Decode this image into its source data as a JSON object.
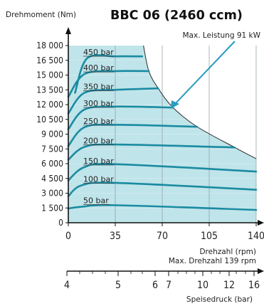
{
  "title": "BBC 06 (2460 ccm)",
  "colors": {
    "plot_background": "#bfe4ea",
    "envelope_fill": "#ffffff",
    "curve": "#1a8ba1",
    "annotation": "#2a9cc0",
    "axis": "#111111"
  },
  "chart_data": {
    "type": "line",
    "title": "BBC 06 (2460 ccm)",
    "ylabel": "Drehmoment (Nm)",
    "xlabel": "Drehzahl (rpm)",
    "xlabel_note": "Max. Drehzahl 139 rpm",
    "xlim": [
      0,
      140
    ],
    "ylim": [
      0,
      18000
    ],
    "x_ticks": [
      "0",
      "35",
      "70",
      "105",
      "140"
    ],
    "x_tick_values": [
      0,
      35,
      70,
      105,
      140
    ],
    "y_ticks": [
      "0",
      "1 500",
      "3 000",
      "4 500",
      "6 000",
      "7 500",
      "9 000",
      "10 500",
      "12 000",
      "13 500",
      "15 000",
      "16 500",
      "18 000"
    ],
    "y_tick_values": [
      0,
      1500,
      3000,
      4500,
      6000,
      7500,
      9000,
      10500,
      12000,
      13500,
      15000,
      16500,
      18000
    ],
    "grid": true,
    "secondary_axis": {
      "label": "Speisedruck (bar)",
      "ticks": [
        "4",
        "5",
        "6",
        "7",
        "10",
        "12",
        "16"
      ]
    },
    "annotation": "Max. Leistung 91 kW",
    "series": [
      {
        "name": "50 bar",
        "x": [
          0,
          10,
          35,
          140
        ],
        "values": [
          1450,
          1620,
          1780,
          1300
        ]
      },
      {
        "name": "100 bar",
        "x": [
          0,
          10,
          35,
          140
        ],
        "values": [
          2700,
          3800,
          4050,
          3350
        ]
      },
      {
        "name": "150 bar",
        "x": [
          0,
          12,
          35,
          140
        ],
        "values": [
          4300,
          5650,
          5950,
          5200
        ]
      },
      {
        "name": "200 bar",
        "x": [
          0,
          12,
          35,
          124
        ],
        "values": [
          6400,
          7700,
          7950,
          7650
        ]
      },
      {
        "name": "250 bar",
        "x": [
          0,
          12,
          35,
          96
        ],
        "values": [
          7800,
          9700,
          9950,
          9750
        ]
      },
      {
        "name": "300 bar",
        "x": [
          0,
          12,
          35,
          78
        ],
        "values": [
          9500,
          11500,
          11800,
          11700
        ]
      },
      {
        "name": "350 bar",
        "x": [
          0,
          12,
          35,
          67
        ],
        "values": [
          11100,
          13200,
          13500,
          13650
        ]
      },
      {
        "name": "400 bar",
        "x": [
          0,
          12,
          35,
          60
        ],
        "values": [
          12800,
          15100,
          15400,
          15400
        ]
      },
      {
        "name": "450 bar",
        "x": [
          5,
          14,
          35,
          55
        ],
        "values": [
          13200,
          16700,
          16900,
          16900
        ]
      }
    ],
    "envelope": {
      "x": [
        56,
        60,
        67,
        78,
        96,
        124,
        140
      ],
      "values": [
        18000,
        15400,
        13650,
        11700,
        9750,
        7650,
        6500
      ]
    }
  }
}
